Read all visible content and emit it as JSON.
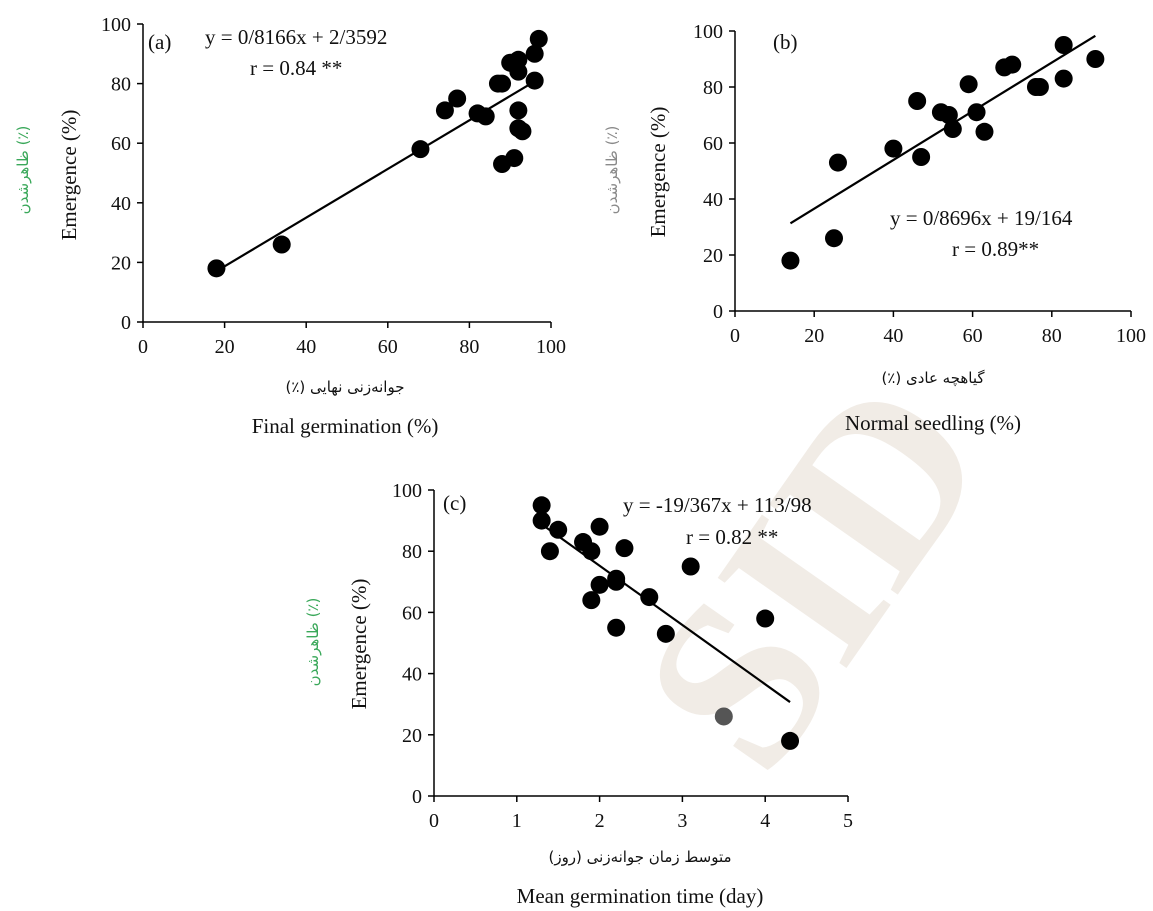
{
  "colors": {
    "point": "#000000",
    "line": "#000000",
    "axis": "#000000",
    "fa_green": "#3aa85a",
    "fa_gray": "#8a8a8a",
    "watermark": "#f1ece6",
    "highlight_point": "#555555"
  },
  "watermark_text": "SID",
  "chart_data": [
    {
      "type": "scatter",
      "panel_label": "(a)",
      "xlabel_fa": "جوانه‌زنی نهایی (٪)",
      "xlabel": "Final germination (%)",
      "ylabel": "Emergence (%)",
      "ylabel_fa": "ظاهرشدن (٪)",
      "xlim": [
        0,
        100
      ],
      "ylim": [
        0,
        100
      ],
      "xticks": [
        "0",
        "20",
        "40",
        "60",
        "80",
        "100"
      ],
      "yticks": [
        "0",
        "20",
        "40",
        "60",
        "80",
        "100"
      ],
      "equation": "y = 0/8166x + 2/3592",
      "r_text": "r = 0.84 **",
      "fit": {
        "slope": 0.8166,
        "intercept": 2.3592,
        "x_range": [
          18,
          97
        ]
      },
      "points": [
        [
          18,
          18
        ],
        [
          34,
          26
        ],
        [
          68,
          58
        ],
        [
          74,
          71
        ],
        [
          77,
          75
        ],
        [
          82,
          70
        ],
        [
          84,
          69
        ],
        [
          87,
          80
        ],
        [
          88,
          80
        ],
        [
          88,
          53
        ],
        [
          90,
          87
        ],
        [
          91,
          55
        ],
        [
          92,
          84
        ],
        [
          92,
          88
        ],
        [
          92,
          71
        ],
        [
          92,
          65
        ],
        [
          93,
          64
        ],
        [
          96,
          81
        ],
        [
          96,
          90
        ],
        [
          97,
          95
        ]
      ]
    },
    {
      "type": "scatter",
      "panel_label": "(b)",
      "xlabel_fa": "گیاهچه عادی (٪)",
      "xlabel": "Normal seedling (%)",
      "ylabel": "Emergence (%)",
      "ylabel_fa": "ظاهرشدن (٪)",
      "xlim": [
        0,
        100
      ],
      "ylim": [
        0,
        100
      ],
      "xticks": [
        "0",
        "20",
        "40",
        "60",
        "80",
        "100"
      ],
      "yticks": [
        "0",
        "20",
        "40",
        "60",
        "80",
        "100"
      ],
      "equation": "y = 0/8696x + 19/164",
      "r_text": "r = 0.89**",
      "fit": {
        "slope": 0.8696,
        "intercept": 19.164,
        "x_range": [
          14,
          91
        ]
      },
      "points": [
        [
          14,
          18
        ],
        [
          25,
          26
        ],
        [
          26,
          53
        ],
        [
          40,
          58
        ],
        [
          46,
          75
        ],
        [
          47,
          55
        ],
        [
          52,
          71
        ],
        [
          54,
          70
        ],
        [
          55,
          65
        ],
        [
          59,
          81
        ],
        [
          61,
          71
        ],
        [
          63,
          64
        ],
        [
          68,
          87
        ],
        [
          70,
          88
        ],
        [
          76,
          80
        ],
        [
          77,
          80
        ],
        [
          83,
          95
        ],
        [
          83,
          83
        ],
        [
          91,
          90
        ]
      ]
    },
    {
      "type": "scatter",
      "panel_label": "(c)",
      "xlabel_fa": "متوسط زمان جوانه‌زنی (روز)",
      "xlabel": "Mean germination time (day)",
      "ylabel": "Emergence (%)",
      "ylabel_fa": "ظاهرشدن (٪)",
      "xlim": [
        0,
        5
      ],
      "ylim": [
        0,
        100
      ],
      "xticks": [
        "0",
        "1",
        "2",
        "3",
        "4",
        "5"
      ],
      "yticks": [
        "0",
        "20",
        "40",
        "60",
        "80",
        "100"
      ],
      "equation": "y = -19/367x + 113/98",
      "r_text": "r = 0.82 **",
      "fit": {
        "slope": -19.367,
        "intercept": 113.98,
        "x_range": [
          1.3,
          4.3
        ]
      },
      "points": [
        [
          1.3,
          95
        ],
        [
          1.3,
          90
        ],
        [
          1.4,
          80
        ],
        [
          1.5,
          87
        ],
        [
          1.8,
          83
        ],
        [
          1.9,
          80
        ],
        [
          1.9,
          64
        ],
        [
          2.0,
          88
        ],
        [
          2.0,
          69
        ],
        [
          2.2,
          71
        ],
        [
          2.2,
          70
        ],
        [
          2.2,
          55
        ],
        [
          2.3,
          81
        ],
        [
          2.6,
          65
        ],
        [
          2.8,
          53
        ],
        [
          3.1,
          75
        ],
        [
          3.5,
          26
        ],
        [
          4.0,
          58
        ],
        [
          4.3,
          18
        ]
      ]
    }
  ]
}
